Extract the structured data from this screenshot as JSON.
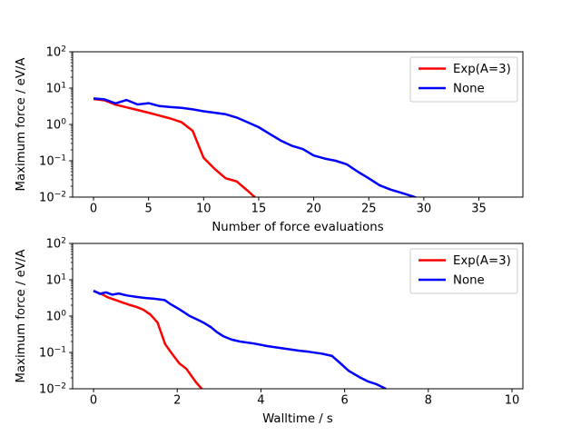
{
  "figure": {
    "background": "#ffffff",
    "text_color": "#000000",
    "spine_color": "#000000",
    "legend_edge_color": "#cccccc",
    "legend_face_color": "#ffffff"
  },
  "chart_data": [
    {
      "type": "line",
      "title": "",
      "xlabel": "Number of force evaluations",
      "ylabel": "Maximum force / eV/A",
      "xlim": [
        -1.9,
        39.0
      ],
      "ylog": true,
      "ylim_log10": [
        -2,
        2
      ],
      "xticks": [
        0,
        5,
        10,
        15,
        20,
        25,
        30,
        35
      ],
      "ytick_exponents": [
        -2,
        -1,
        0,
        1,
        2
      ],
      "grid": false,
      "legend_position": "upper right",
      "legend": [
        "Exp(A=3)",
        "None"
      ],
      "series": [
        {
          "name": "Exp(A=3)",
          "color": "#ff0000",
          "x": [
            0,
            1,
            2,
            3,
            4,
            5,
            6,
            7,
            8,
            9,
            10,
            11,
            12,
            13,
            14,
            15
          ],
          "y": [
            5.0,
            4.6,
            3.5,
            2.95,
            2.5,
            2.1,
            1.75,
            1.45,
            1.15,
            0.67,
            0.12,
            0.06,
            0.033,
            0.027,
            0.015,
            0.008
          ]
        },
        {
          "name": "None",
          "color": "#0000ff",
          "x": [
            0,
            1,
            2,
            3,
            4,
            5,
            6,
            7,
            8,
            9,
            10,
            11,
            12,
            13,
            14,
            15,
            16,
            17,
            18,
            19,
            20,
            21,
            22,
            23,
            24,
            25,
            26,
            27,
            28,
            29,
            30
          ],
          "y": [
            5.2,
            4.9,
            3.8,
            4.7,
            3.55,
            3.85,
            3.2,
            3.0,
            2.85,
            2.6,
            2.3,
            2.1,
            1.9,
            1.55,
            1.15,
            0.84,
            0.55,
            0.36,
            0.26,
            0.21,
            0.14,
            0.115,
            0.1,
            0.08,
            0.05,
            0.033,
            0.021,
            0.016,
            0.013,
            0.0105,
            0.008
          ]
        }
      ]
    },
    {
      "type": "line",
      "title": "",
      "xlabel": "Walltime / s",
      "ylabel": "Maximum force / eV/A",
      "xlim": [
        -0.5,
        10.26
      ],
      "ylog": true,
      "ylim_log10": [
        -2,
        2
      ],
      "xticks": [
        0,
        2,
        4,
        6,
        8,
        10
      ],
      "ytick_exponents": [
        -2,
        -1,
        0,
        1,
        2
      ],
      "grid": false,
      "legend_position": "upper right",
      "legend": [
        "Exp(A=3)",
        "None"
      ],
      "series": [
        {
          "name": "Exp(A=3)",
          "color": "#ff0000",
          "x": [
            0,
            0.17,
            0.34,
            0.51,
            0.68,
            0.85,
            1.02,
            1.19,
            1.36,
            1.53,
            1.71,
            1.88,
            2.05,
            2.22,
            2.45,
            2.62
          ],
          "y": [
            4.9,
            4.15,
            3.3,
            2.8,
            2.4,
            2.05,
            1.8,
            1.5,
            1.1,
            0.66,
            0.17,
            0.09,
            0.05,
            0.035,
            0.015,
            0.009
          ]
        },
        {
          "name": "None",
          "color": "#0000ff",
          "x": [
            0,
            0.15,
            0.3,
            0.45,
            0.6,
            0.8,
            1.05,
            1.25,
            1.45,
            1.7,
            1.85,
            2.05,
            2.3,
            2.5,
            2.65,
            2.8,
            2.95,
            3.1,
            3.3,
            3.5,
            3.85,
            4.15,
            4.5,
            4.9,
            5.15,
            5.45,
            5.7,
            5.9,
            6.1,
            6.35,
            6.55,
            6.75,
            6.95,
            7.1
          ],
          "y": [
            5.0,
            4.1,
            4.5,
            3.9,
            4.2,
            3.7,
            3.35,
            3.15,
            3.0,
            2.75,
            2.1,
            1.55,
            1.0,
            0.78,
            0.64,
            0.5,
            0.36,
            0.28,
            0.225,
            0.2,
            0.175,
            0.15,
            0.13,
            0.112,
            0.104,
            0.093,
            0.08,
            0.05,
            0.031,
            0.021,
            0.016,
            0.0135,
            0.0105,
            0.008
          ]
        }
      ]
    }
  ]
}
